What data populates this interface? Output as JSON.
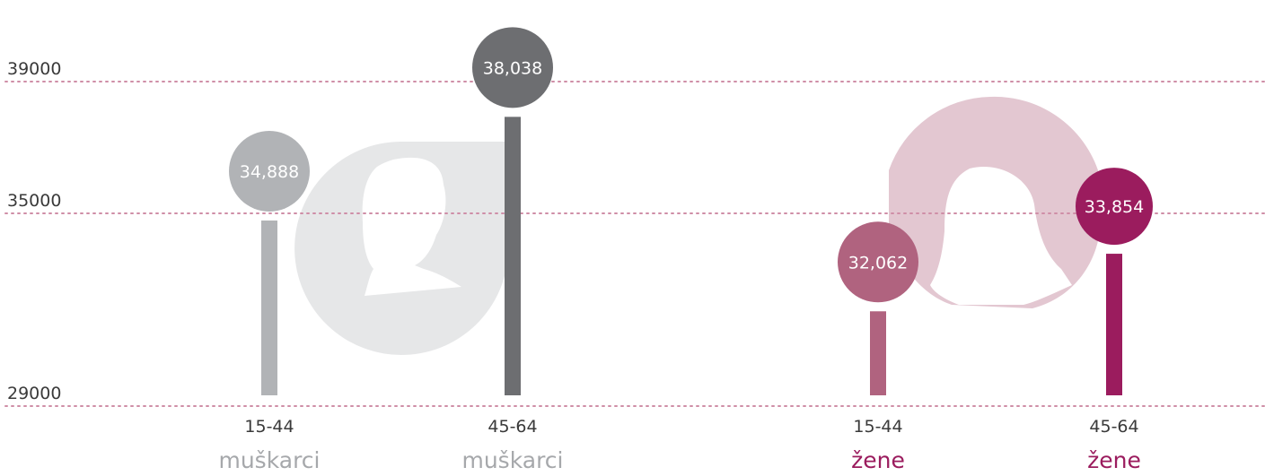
{
  "chart_data": {
    "type": "bar",
    "y_ticks": [
      "39000",
      "35000",
      "29000"
    ],
    "y_tick_values": [
      39000,
      35000,
      29000
    ],
    "ylim": [
      29000,
      39000
    ],
    "grid": true,
    "colors": {
      "grid": "#cf8ea7",
      "axis_text": "#3a3a3a",
      "male_label": "#a6a8ab",
      "female_label": "#9b1c5e",
      "silhouette_male": "#e6e7e8",
      "silhouette_female": "#e3c7d1"
    },
    "bars": [
      {
        "value": 34888,
        "value_label": "34,888",
        "age": "15-44",
        "group": "muškarci",
        "color": "#b1b3b6"
      },
      {
        "value": 38038,
        "value_label": "38,038",
        "age": "45-64",
        "group": "muškarci",
        "color": "#6d6e71"
      },
      {
        "value": 32062,
        "value_label": "32,062",
        "age": "15-44",
        "group": "žene",
        "color": "#b0637f"
      },
      {
        "value": 33854,
        "value_label": "33,854",
        "age": "45-64",
        "group": "žene",
        "color": "#9b1c5e"
      }
    ],
    "decorations": [
      "male-silhouette-icon",
      "female-silhouette-icon"
    ]
  }
}
